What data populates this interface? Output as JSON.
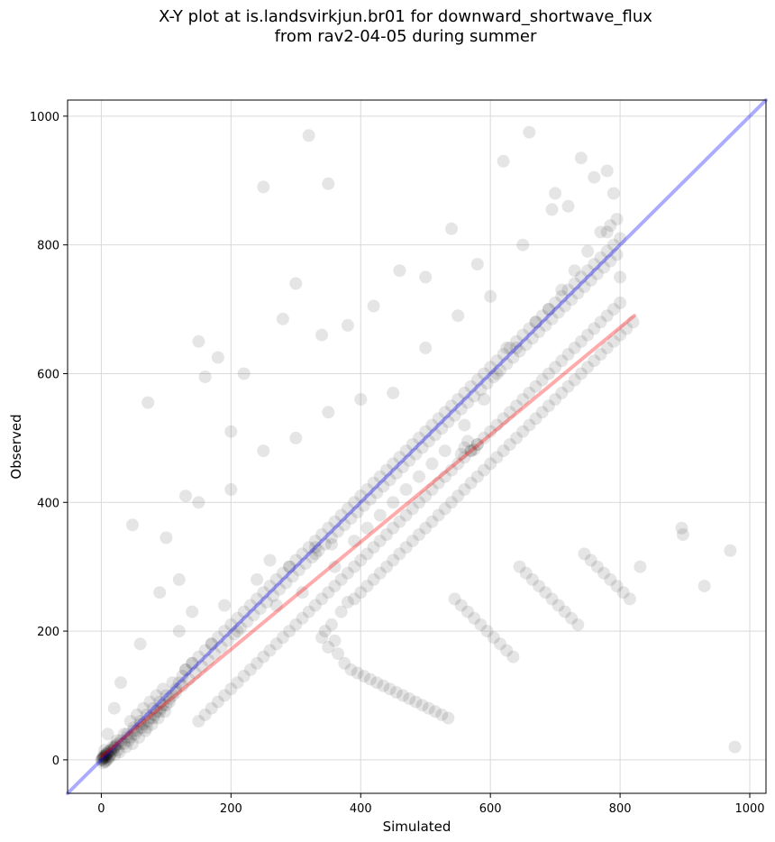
{
  "chart_data": {
    "type": "scatter",
    "title": "X-Y plot at is.landsvirkjun.br01 for downward_shortwave_flux",
    "subtitle": "from rav2-04-05 during summer",
    "xlabel": "Simulated",
    "ylabel": "Observed",
    "xlim": [
      -52,
      1025
    ],
    "ylim": [
      -52,
      1025
    ],
    "xticks": [
      0,
      200,
      400,
      600,
      800,
      1000
    ],
    "yticks": [
      0,
      200,
      400,
      600,
      800,
      1000
    ],
    "grid": true,
    "colors": {
      "points": "#000000",
      "identity_line": "#0000ff",
      "fit_line": "#ff0000"
    },
    "lines": [
      {
        "role": "identity",
        "x": [
          -52,
          1025
        ],
        "y": [
          -52,
          1025
        ]
      },
      {
        "role": "fit",
        "x": [
          0,
          822
        ],
        "y": [
          5,
          690
        ]
      }
    ],
    "points": {
      "x": [
        970,
        330,
        897,
        355,
        895,
        260,
        831,
        340,
        977,
        695,
        930,
        625,
        0,
        2,
        4,
        5,
        7,
        8,
        10,
        12,
        14,
        3,
        6,
        9,
        11,
        15,
        18,
        20,
        22,
        25,
        1,
        3,
        6,
        8,
        13,
        17,
        21,
        24,
        28,
        30,
        35,
        40,
        45,
        50,
        55,
        60,
        65,
        70,
        75,
        80,
        85,
        90,
        95,
        100,
        38,
        42,
        48,
        52,
        58,
        62,
        68,
        72,
        78,
        82,
        88,
        92,
        98,
        105,
        110,
        115,
        120,
        125,
        130,
        140,
        150,
        160,
        170,
        180,
        190,
        200,
        210,
        220,
        230,
        240,
        250,
        260,
        270,
        280,
        290,
        300,
        310,
        320,
        330,
        340,
        350,
        360,
        370,
        380,
        390,
        400,
        410,
        420,
        430,
        440,
        450,
        460,
        470,
        480,
        490,
        500,
        510,
        520,
        530,
        540,
        550,
        560,
        570,
        580,
        590,
        600,
        610,
        620,
        630,
        640,
        650,
        660,
        670,
        680,
        690,
        700,
        710,
        720,
        730,
        740,
        750,
        760,
        770,
        780,
        790,
        800,
        72,
        48,
        100,
        130,
        150,
        180,
        160,
        200,
        220,
        250,
        280,
        300,
        320,
        350,
        380,
        420,
        460,
        500,
        540,
        580,
        620,
        660,
        700,
        740,
        760,
        780,
        790,
        795,
        800,
        780,
        720,
        650,
        600,
        550,
        500,
        450,
        400,
        350,
        300,
        250,
        200,
        150,
        120,
        90,
        60,
        30,
        20,
        10,
        5,
        140,
        170,
        190,
        210,
        240,
        270,
        290,
        310,
        330,
        360,
        390,
        410,
        430,
        450,
        470,
        490,
        510,
        530,
        560,
        590,
        610,
        640,
        670,
        690,
        710,
        730,
        750,
        770,
        785,
        560,
        570,
        580,
        555,
        565,
        575,
        340,
        345,
        350,
        355,
        360,
        365,
        370,
        375,
        380,
        385,
        390,
        395,
        400,
        405,
        410,
        415,
        420,
        425,
        430,
        435,
        440,
        445,
        450,
        455,
        460,
        465,
        470,
        475,
        480,
        485,
        490,
        495,
        500,
        505,
        510,
        515,
        520,
        525,
        530,
        535,
        540,
        545,
        550,
        555,
        560,
        565,
        570,
        575,
        580,
        585,
        590,
        595,
        600,
        605,
        610,
        615,
        620,
        625,
        630,
        635,
        640,
        645,
        650,
        655,
        660,
        665,
        670,
        675,
        680,
        685,
        690,
        695,
        700,
        705,
        710,
        715,
        720,
        725,
        730,
        735,
        740,
        745,
        750,
        755,
        760,
        765,
        770,
        775,
        780,
        785,
        790,
        795,
        800,
        805,
        810,
        815,
        820,
        120,
        130,
        140,
        110,
        100,
        90,
        80,
        70,
        60,
        50,
        40,
        30,
        20,
        15,
        10,
        8,
        6,
        4,
        2,
        150,
        160,
        170,
        180,
        190,
        200,
        210,
        220,
        230,
        240,
        250,
        260,
        270,
        280,
        290,
        300,
        310,
        320,
        330,
        340,
        350,
        360,
        370,
        380,
        390,
        400,
        410,
        420,
        430,
        440,
        450,
        460,
        470,
        480,
        490,
        500,
        510,
        520,
        530,
        540,
        550,
        560,
        570,
        580,
        590,
        600,
        610,
        620,
        630,
        640,
        650,
        660,
        670,
        680,
        690,
        700,
        710,
        720,
        730,
        740,
        750,
        760,
        770,
        780,
        790,
        800,
        25,
        35,
        45,
        55,
        65,
        75,
        85,
        95,
        105,
        115,
        125,
        135,
        145,
        155,
        165,
        175,
        185,
        195,
        205,
        215,
        225,
        235,
        245,
        255,
        265,
        275,
        285,
        295,
        305,
        315,
        325,
        335,
        345,
        355,
        365,
        375,
        385,
        395,
        405,
        415,
        425,
        435,
        445,
        455,
        465,
        475,
        485,
        495,
        505,
        515,
        525,
        535,
        545,
        555,
        565,
        575,
        585,
        595,
        605,
        615,
        625,
        635,
        645,
        655,
        665,
        675,
        685,
        695,
        705,
        715,
        725,
        735,
        745,
        755,
        765,
        775,
        785,
        795
      ],
      "y": [
        325,
        330,
        350,
        335,
        360,
        310,
        300,
        660,
        20,
        855,
        270,
        640,
        0,
        2,
        5,
        3,
        8,
        4,
        12,
        6,
        15,
        -5,
        -2,
        0,
        2,
        10,
        14,
        18,
        22,
        25,
        0,
        6,
        -3,
        10,
        5,
        20,
        8,
        30,
        12,
        25,
        40,
        35,
        60,
        45,
        70,
        55,
        80,
        50,
        90,
        65,
        100,
        75,
        110,
        85,
        20,
        30,
        25,
        40,
        35,
        50,
        45,
        60,
        55,
        70,
        65,
        80,
        75,
        90,
        100,
        110,
        120,
        130,
        140,
        150,
        160,
        170,
        180,
        190,
        200,
        210,
        220,
        230,
        240,
        250,
        260,
        270,
        280,
        290,
        300,
        310,
        320,
        330,
        340,
        350,
        360,
        370,
        380,
        390,
        400,
        410,
        420,
        430,
        440,
        450,
        460,
        470,
        480,
        490,
        500,
        510,
        520,
        530,
        540,
        550,
        560,
        570,
        580,
        590,
        600,
        610,
        620,
        630,
        640,
        650,
        660,
        670,
        680,
        690,
        700,
        710,
        720,
        730,
        740,
        750,
        760,
        770,
        780,
        790,
        800,
        810,
        555,
        365,
        345,
        410,
        650,
        625,
        595,
        510,
        600,
        890,
        685,
        740,
        970,
        895,
        675,
        705,
        760,
        750,
        825,
        770,
        930,
        975,
        880,
        935,
        905,
        915,
        880,
        840,
        750,
        820,
        860,
        800,
        720,
        690,
        640,
        570,
        560,
        540,
        500,
        480,
        420,
        400,
        280,
        260,
        180,
        120,
        80,
        40,
        15,
        230,
        180,
        240,
        200,
        280,
        240,
        300,
        260,
        320,
        300,
        340,
        360,
        380,
        400,
        420,
        440,
        460,
        480,
        520,
        560,
        600,
        640,
        680,
        700,
        730,
        760,
        790,
        820,
        830,
        485,
        480,
        490,
        475,
        495,
        482,
        190,
        200,
        175,
        210,
        185,
        165,
        230,
        150,
        245,
        140,
        250,
        135,
        260,
        130,
        270,
        125,
        280,
        120,
        290,
        115,
        300,
        110,
        310,
        105,
        320,
        100,
        330,
        95,
        340,
        90,
        350,
        85,
        360,
        80,
        370,
        75,
        380,
        70,
        390,
        65,
        400,
        250,
        410,
        240,
        420,
        230,
        430,
        220,
        440,
        210,
        450,
        200,
        460,
        190,
        470,
        180,
        480,
        170,
        490,
        160,
        500,
        300,
        510,
        290,
        520,
        280,
        530,
        270,
        540,
        260,
        550,
        250,
        560,
        240,
        570,
        230,
        580,
        220,
        590,
        210,
        600,
        320,
        610,
        310,
        620,
        300,
        630,
        290,
        640,
        280,
        650,
        270,
        660,
        260,
        670,
        250,
        680,
        200,
        140,
        150,
        120,
        100,
        90,
        80,
        70,
        60,
        50,
        40,
        30,
        20,
        15,
        10,
        8,
        6,
        4,
        2,
        60,
        70,
        80,
        90,
        100,
        110,
        120,
        130,
        140,
        150,
        160,
        170,
        180,
        190,
        200,
        210,
        220,
        230,
        240,
        250,
        260,
        270,
        280,
        290,
        300,
        310,
        320,
        330,
        340,
        350,
        360,
        370,
        380,
        390,
        400,
        410,
        420,
        430,
        440,
        450,
        460,
        470,
        480,
        490,
        500,
        510,
        520,
        530,
        540,
        550,
        560,
        570,
        580,
        590,
        600,
        610,
        620,
        630,
        640,
        650,
        660,
        670,
        680,
        690,
        700,
        710,
        15,
        25,
        35,
        45,
        55,
        65,
        75,
        85,
        95,
        105,
        115,
        125,
        135,
        145,
        155,
        165,
        175,
        185,
        195,
        205,
        215,
        225,
        235,
        245,
        255,
        265,
        275,
        285,
        295,
        305,
        315,
        325,
        335,
        345,
        355,
        365,
        375,
        385,
        395,
        405,
        415,
        425,
        435,
        445,
        455,
        465,
        475,
        485,
        495,
        505,
        515,
        525,
        535,
        545,
        555,
        565,
        575,
        585,
        595,
        605,
        615,
        625,
        635,
        645,
        655,
        665,
        675,
        685,
        695,
        705,
        715,
        725,
        735,
        745,
        755,
        765,
        775,
        785
      ]
    }
  }
}
